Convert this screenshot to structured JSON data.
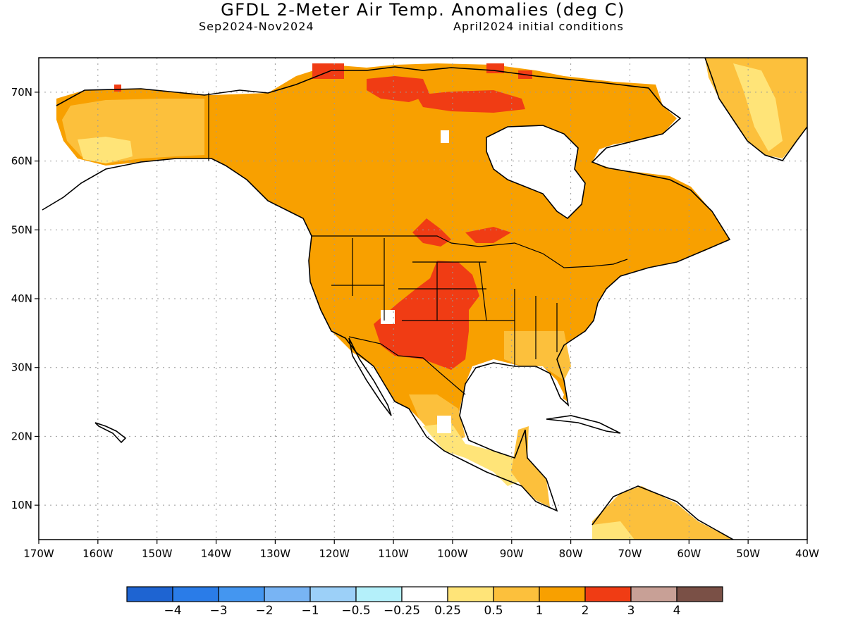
{
  "header": {
    "title": "GFDL 2-Meter Air Temp. Anomalies (deg C)",
    "period": "Sep2024-Nov2024",
    "init": "April2024 initial conditions"
  },
  "map": {
    "lon_range": [
      -170,
      -40
    ],
    "lat_range": [
      5,
      75
    ],
    "lon_ticks": [
      "170W",
      "160W",
      "150W",
      "140W",
      "130W",
      "120W",
      "110W",
      "100W",
      "90W",
      "80W",
      "70W",
      "60W",
      "50W",
      "40W"
    ],
    "lat_ticks": [
      "10N",
      "20N",
      "30N",
      "40N",
      "50N",
      "60N",
      "70N"
    ],
    "grid": "dotted"
  },
  "colorbar": {
    "colors": [
      "#1e64d2",
      "#2a7ce8",
      "#4496f0",
      "#78b4f4",
      "#9cd0f8",
      "#b4f0fa",
      "#ffffff",
      "#ffe478",
      "#fcc03c",
      "#f8a000",
      "#f03c14",
      "#c8a096",
      "#7a5046"
    ],
    "labels": [
      "-4",
      "-3",
      "-2",
      "-1",
      "-0.5",
      "-0.25",
      "0.25",
      "0.5",
      "1",
      "2",
      "3",
      "4"
    ]
  },
  "anomaly_classes": {
    "light_yellow": "0.25 to 0.5",
    "yellow_orange": "0.5 to 1",
    "orange": "1 to 2",
    "red": "2 to 3"
  }
}
